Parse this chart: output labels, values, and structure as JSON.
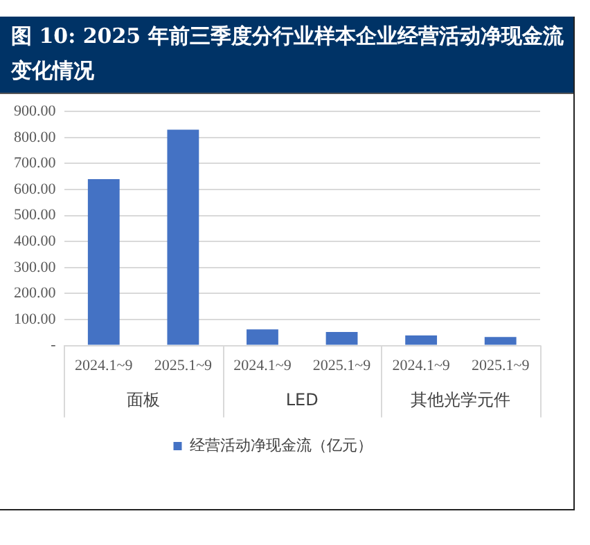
{
  "chart_data": {
    "type": "bar",
    "title": "图 10: 2025 年前三季度分行业样本企业经营活动净现金流变化情况",
    "categories": [
      "2024.1~9",
      "2025.1~9",
      "2024.1~9",
      "2025.1~9",
      "2024.1~9",
      "2025.1~9"
    ],
    "series": [
      {
        "name": "经营活动净现金流（亿元）",
        "color": "#4472c4",
        "values": [
          640,
          830,
          62,
          52,
          39,
          33
        ]
      }
    ],
    "ylim": [
      0,
      900
    ],
    "yticks": [
      {
        "value": 0,
        "label": "-"
      },
      {
        "value": 100,
        "label": "100.00"
      },
      {
        "value": 200,
        "label": "200.00"
      },
      {
        "value": 300,
        "label": "300.00"
      },
      {
        "value": 400,
        "label": "400.00"
      },
      {
        "value": 500,
        "label": "500.00"
      },
      {
        "value": 600,
        "label": "600.00"
      },
      {
        "value": 700,
        "label": "700.00"
      },
      {
        "value": 800,
        "label": "800.00"
      },
      {
        "value": 900,
        "label": "900.00"
      }
    ],
    "annotations": [
      "面板",
      "LED",
      "其他光学元件"
    ],
    "grid": "y",
    "legend": "bottom"
  }
}
